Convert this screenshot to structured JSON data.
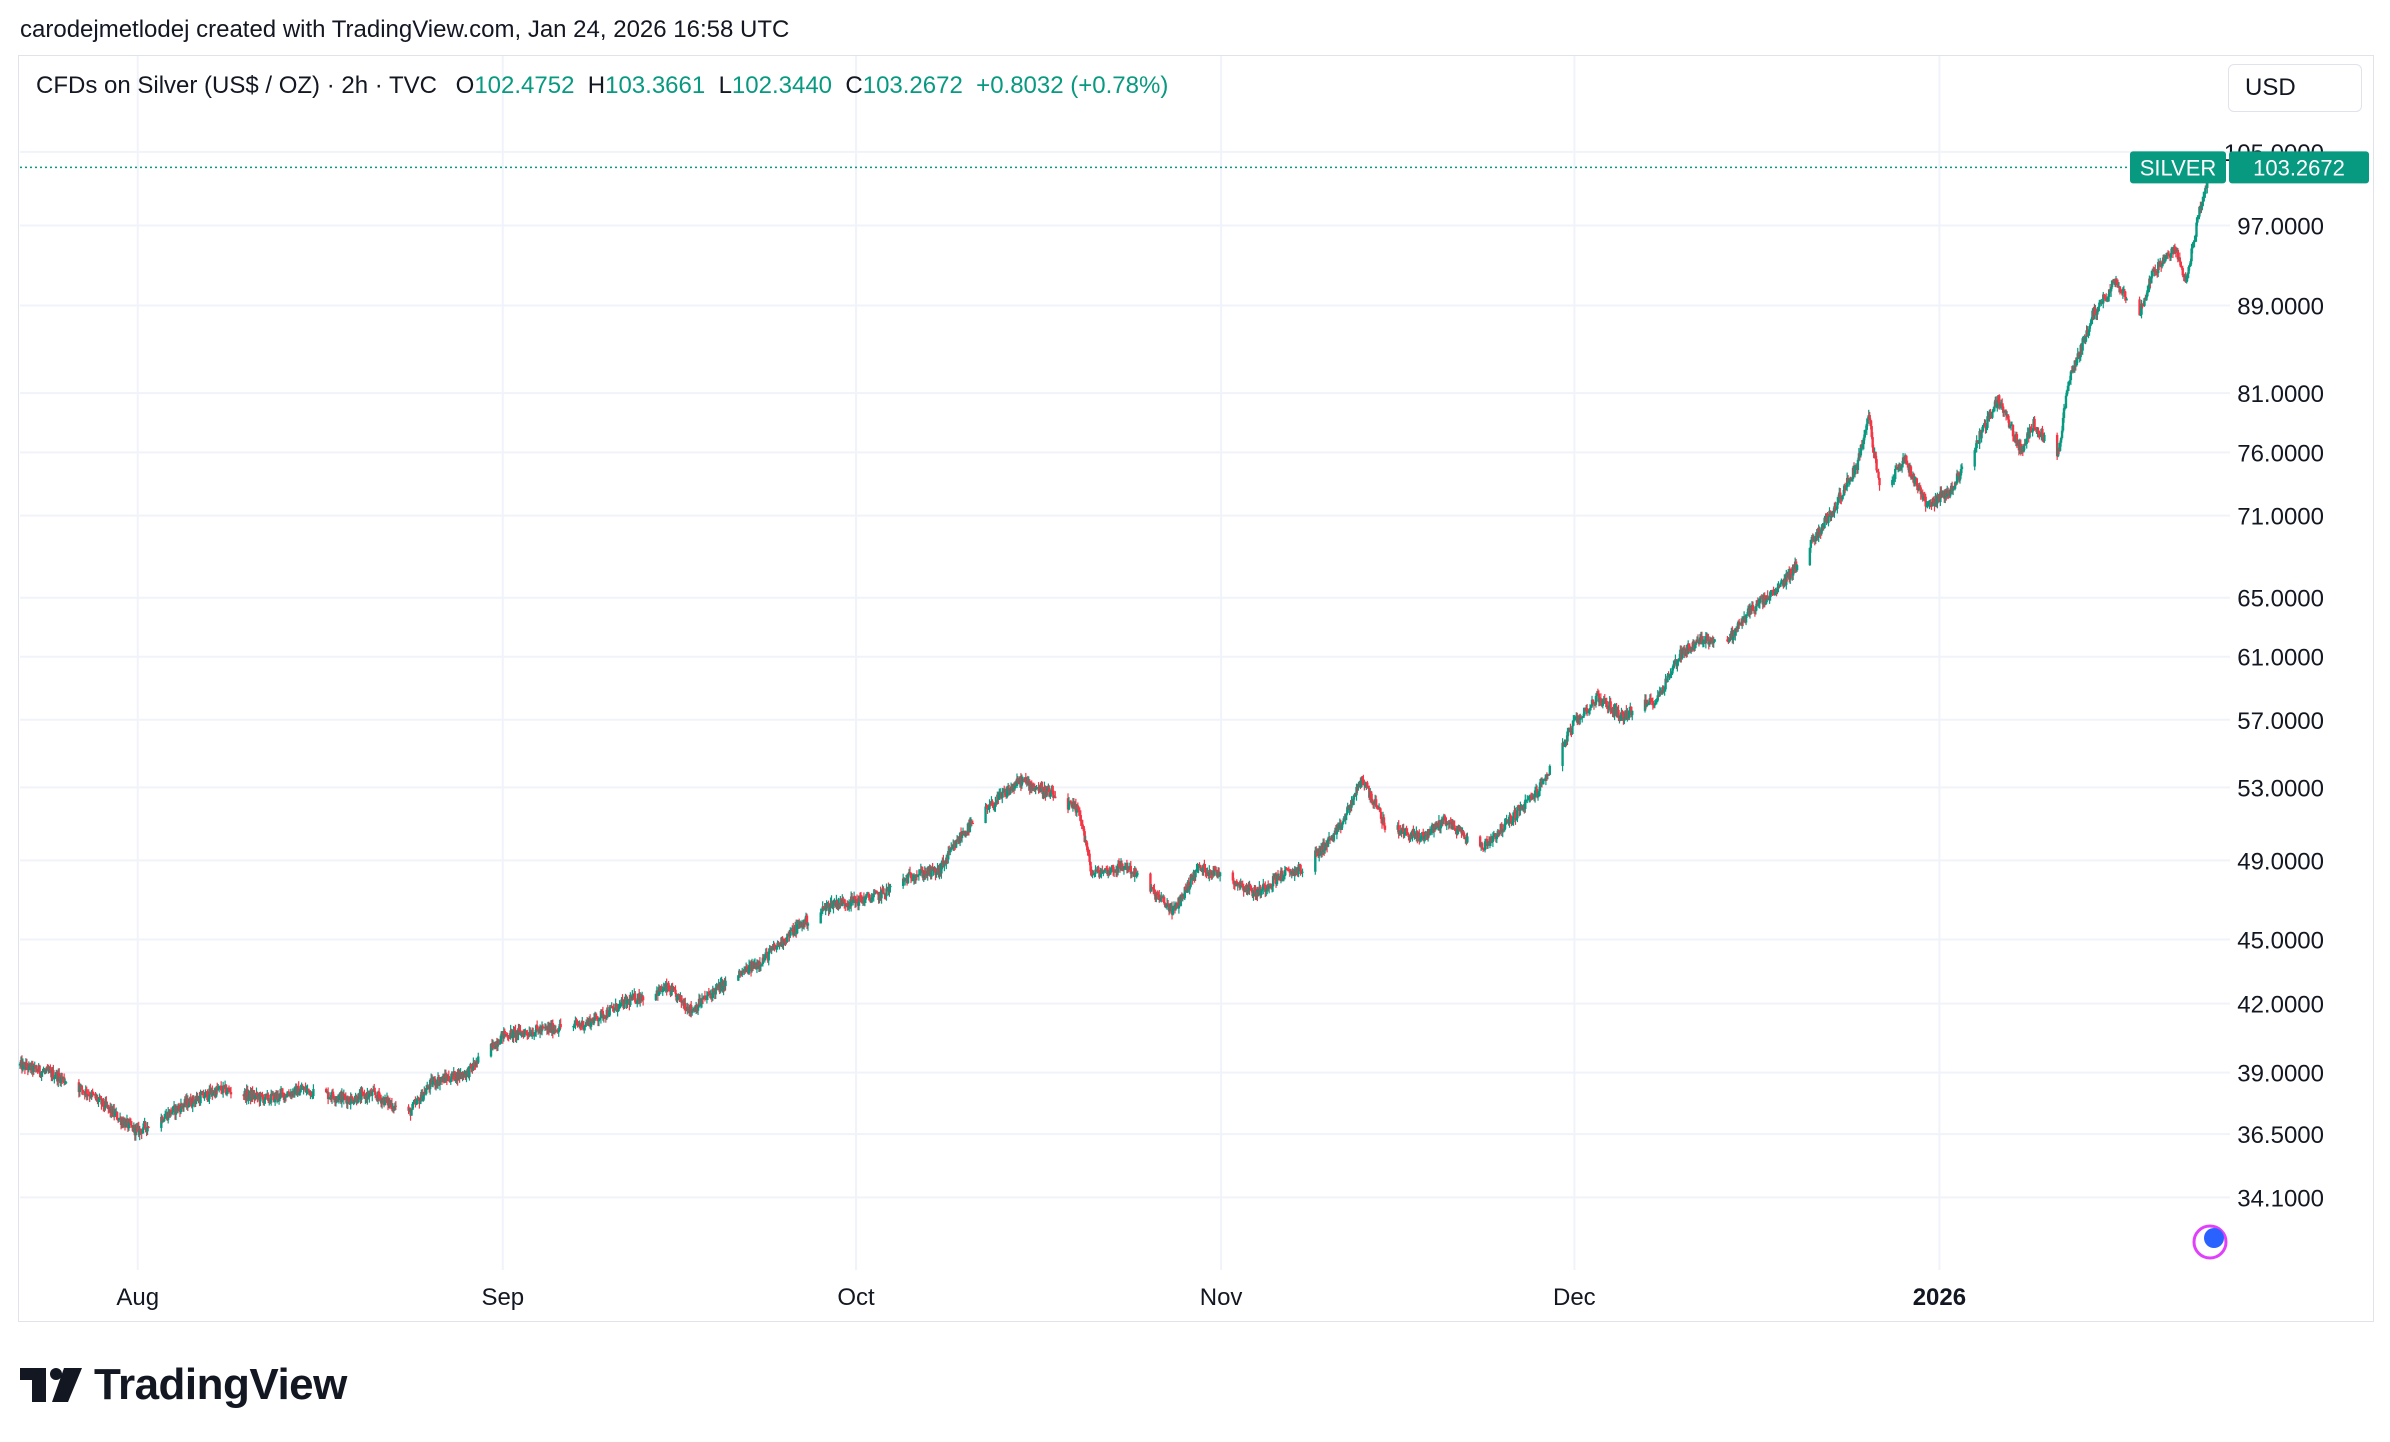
{
  "header": {
    "credit": "carodejmetlodej created with TradingView.com, Jan 24, 2026 16:58 UTC"
  },
  "legend": {
    "symbol": "CFDs on Silver (US$ / OZ) · 2h · TVC",
    "o_label": "O",
    "o_value": "102.4752",
    "h_label": "H",
    "h_value": "103.3661",
    "l_label": "L",
    "l_value": "102.3440",
    "c_label": "C",
    "c_value": "103.2672",
    "change": "+0.8032 (+0.78%)"
  },
  "currency": "USD",
  "price_tag": {
    "name": "SILVER",
    "value": "103.2672"
  },
  "brand": {
    "name": "TradingView"
  },
  "colors": {
    "up": "#089981",
    "down": "#f23645",
    "grid": "#f0f3fa",
    "axis_text": "#131722",
    "tag_bg": "#089981"
  },
  "chart_data": {
    "type": "candlestick",
    "title": "CFDs on Silver (US$ / OZ) · 2h · TVC",
    "xlabel": "",
    "ylabel": "",
    "y_scale": "log",
    "ylim": [
      31.2,
      107.5
    ],
    "y_ticks": [
      "105.0000",
      "97.0000",
      "89.0000",
      "81.0000",
      "76.0000",
      "71.0000",
      "65.0000",
      "61.0000",
      "57.0000",
      "53.0000",
      "49.0000",
      "45.0000",
      "42.0000",
      "39.0000",
      "36.5000",
      "34.1000"
    ],
    "x_ticks": [
      "Aug",
      "Sep",
      "Oct",
      "Nov",
      "Dec",
      "2026"
    ],
    "x_tick_dates": [
      "2025-08-01",
      "2025-09-01",
      "2025-10-01",
      "2025-11-01",
      "2025-12-01",
      "2026-01-01"
    ],
    "x_range": [
      "2025-07-22",
      "2026-01-25"
    ],
    "last_price": 103.2672,
    "series": [
      {
        "name": "SILVER",
        "points": [
          {
            "date": "2025-07-22",
            "close": 39.3
          },
          {
            "date": "2025-07-25",
            "close": 38.9
          },
          {
            "date": "2025-07-28",
            "close": 38.1
          },
          {
            "date": "2025-07-31",
            "close": 36.9
          },
          {
            "date": "2025-08-01",
            "close": 36.6
          },
          {
            "date": "2025-08-05",
            "close": 37.7
          },
          {
            "date": "2025-08-08",
            "close": 38.3
          },
          {
            "date": "2025-08-12",
            "close": 37.9
          },
          {
            "date": "2025-08-15",
            "close": 38.3
          },
          {
            "date": "2025-08-19",
            "close": 37.9
          },
          {
            "date": "2025-08-21",
            "close": 38.1
          },
          {
            "date": "2025-08-24",
            "close": 37.3
          },
          {
            "date": "2025-08-26",
            "close": 38.6
          },
          {
            "date": "2025-08-29",
            "close": 39.0
          },
          {
            "date": "2025-09-01",
            "close": 40.6
          },
          {
            "date": "2025-09-04",
            "close": 40.8
          },
          {
            "date": "2025-09-08",
            "close": 41.1
          },
          {
            "date": "2025-09-12",
            "close": 42.2
          },
          {
            "date": "2025-09-15",
            "close": 42.7
          },
          {
            "date": "2025-09-17",
            "close": 41.7
          },
          {
            "date": "2025-09-19",
            "close": 42.6
          },
          {
            "date": "2025-09-23",
            "close": 44.0
          },
          {
            "date": "2025-09-26",
            "close": 45.6
          },
          {
            "date": "2025-09-29",
            "close": 46.8
          },
          {
            "date": "2025-10-01",
            "close": 46.9
          },
          {
            "date": "2025-10-03",
            "close": 47.2
          },
          {
            "date": "2025-10-06",
            "close": 48.3
          },
          {
            "date": "2025-10-08",
            "close": 48.4
          },
          {
            "date": "2025-10-10",
            "close": 50.4
          },
          {
            "date": "2025-10-13",
            "close": 52.3
          },
          {
            "date": "2025-10-15",
            "close": 53.4
          },
          {
            "date": "2025-10-17",
            "close": 52.8
          },
          {
            "date": "2025-10-20",
            "close": 51.6
          },
          {
            "date": "2025-10-21",
            "close": 48.3
          },
          {
            "date": "2025-10-24",
            "close": 48.7
          },
          {
            "date": "2025-10-27",
            "close": 46.9
          },
          {
            "date": "2025-10-28",
            "close": 46.4
          },
          {
            "date": "2025-10-30",
            "close": 48.6
          },
          {
            "date": "2025-11-01",
            "close": 48.3
          },
          {
            "date": "2025-11-04",
            "close": 47.3
          },
          {
            "date": "2025-11-06",
            "close": 48.2
          },
          {
            "date": "2025-11-08",
            "close": 48.6
          },
          {
            "date": "2025-11-11",
            "close": 50.6
          },
          {
            "date": "2025-11-13",
            "close": 53.5
          },
          {
            "date": "2025-11-15",
            "close": 50.8
          },
          {
            "date": "2025-11-18",
            "close": 50.2
          },
          {
            "date": "2025-11-20",
            "close": 51.2
          },
          {
            "date": "2025-11-23",
            "close": 49.6
          },
          {
            "date": "2025-11-25",
            "close": 50.8
          },
          {
            "date": "2025-11-28",
            "close": 52.9
          },
          {
            "date": "2025-12-01",
            "close": 56.8
          },
          {
            "date": "2025-12-03",
            "close": 58.4
          },
          {
            "date": "2025-12-05",
            "close": 57.2
          },
          {
            "date": "2025-12-08",
            "close": 58.3
          },
          {
            "date": "2025-12-10",
            "close": 61.2
          },
          {
            "date": "2025-12-12",
            "close": 62.2
          },
          {
            "date": "2025-12-14",
            "close": 62.0
          },
          {
            "date": "2025-12-16",
            "close": 64.2
          },
          {
            "date": "2025-12-18",
            "close": 65.3
          },
          {
            "date": "2025-12-20",
            "close": 67.5
          },
          {
            "date": "2025-12-23",
            "close": 71.5
          },
          {
            "date": "2025-12-25",
            "close": 75.0
          },
          {
            "date": "2025-12-26",
            "close": 79.0
          },
          {
            "date": "2025-12-27",
            "close": 72.5
          },
          {
            "date": "2025-12-29",
            "close": 75.5
          },
          {
            "date": "2025-12-31",
            "close": 71.8
          },
          {
            "date": "2026-01-02",
            "close": 73.0
          },
          {
            "date": "2026-01-04",
            "close": 76.5
          },
          {
            "date": "2026-01-06",
            "close": 80.5
          },
          {
            "date": "2026-01-08",
            "close": 76.0
          },
          {
            "date": "2026-01-09",
            "close": 78.5
          },
          {
            "date": "2026-01-11",
            "close": 75.5
          },
          {
            "date": "2026-01-12",
            "close": 82.0
          },
          {
            "date": "2026-01-14",
            "close": 88.0
          },
          {
            "date": "2026-01-16",
            "close": 91.5
          },
          {
            "date": "2026-01-18",
            "close": 88.0
          },
          {
            "date": "2026-01-19",
            "close": 92.0
          },
          {
            "date": "2026-01-21",
            "close": 94.5
          },
          {
            "date": "2026-01-22",
            "close": 91.5
          },
          {
            "date": "2026-01-23",
            "close": 98.0
          },
          {
            "date": "2026-01-24",
            "close": 103.2672
          }
        ]
      }
    ]
  }
}
